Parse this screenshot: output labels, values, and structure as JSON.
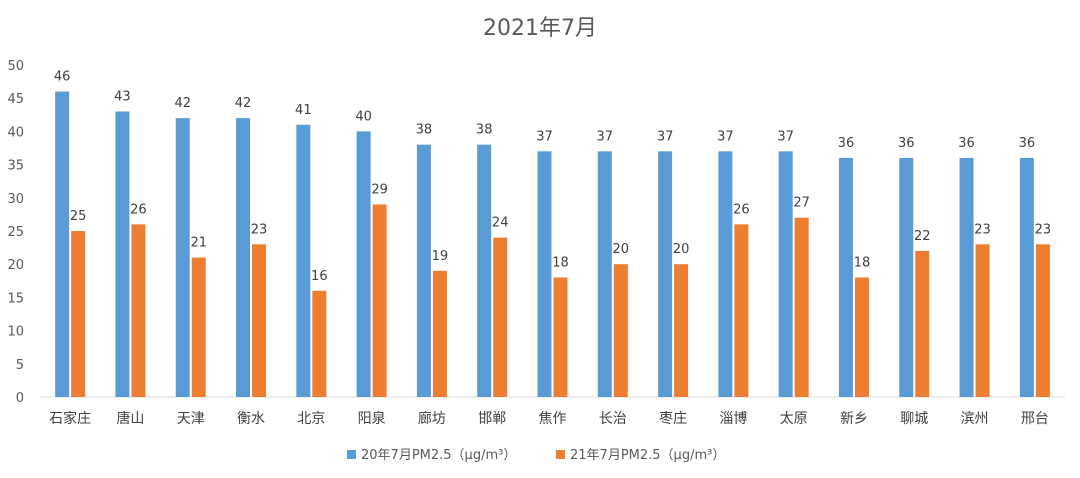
{
  "chart_data": {
    "type": "bar",
    "title": "2021年7月",
    "categories": [
      "石家庄",
      "唐山",
      "天津",
      "衡水",
      "北京",
      "阳泉",
      "廊坊",
      "邯郸",
      "焦作",
      "长治",
      "枣庄",
      "淄博",
      "太原",
      "新乡",
      "聊城",
      "滨州",
      "邢台"
    ],
    "series": [
      {
        "name": "20年7月PM2.5（μg/m³）",
        "color": "#5B9BD5",
        "values": [
          46,
          43,
          42,
          42,
          41,
          40,
          38,
          38,
          37,
          37,
          37,
          37,
          37,
          36,
          36,
          36,
          36
        ]
      },
      {
        "name": "21年7月PM2.5（μg/m³）",
        "color": "#ED7D31",
        "values": [
          25,
          26,
          21,
          23,
          16,
          29,
          19,
          24,
          18,
          20,
          20,
          26,
          27,
          18,
          22,
          23,
          23
        ]
      }
    ],
    "ylim": [
      0,
      50
    ],
    "yticks": [
      0,
      5,
      10,
      15,
      20,
      25,
      30,
      35,
      40,
      45,
      50
    ],
    "grid": false,
    "data_labels": true,
    "legend_position": "bottom"
  }
}
